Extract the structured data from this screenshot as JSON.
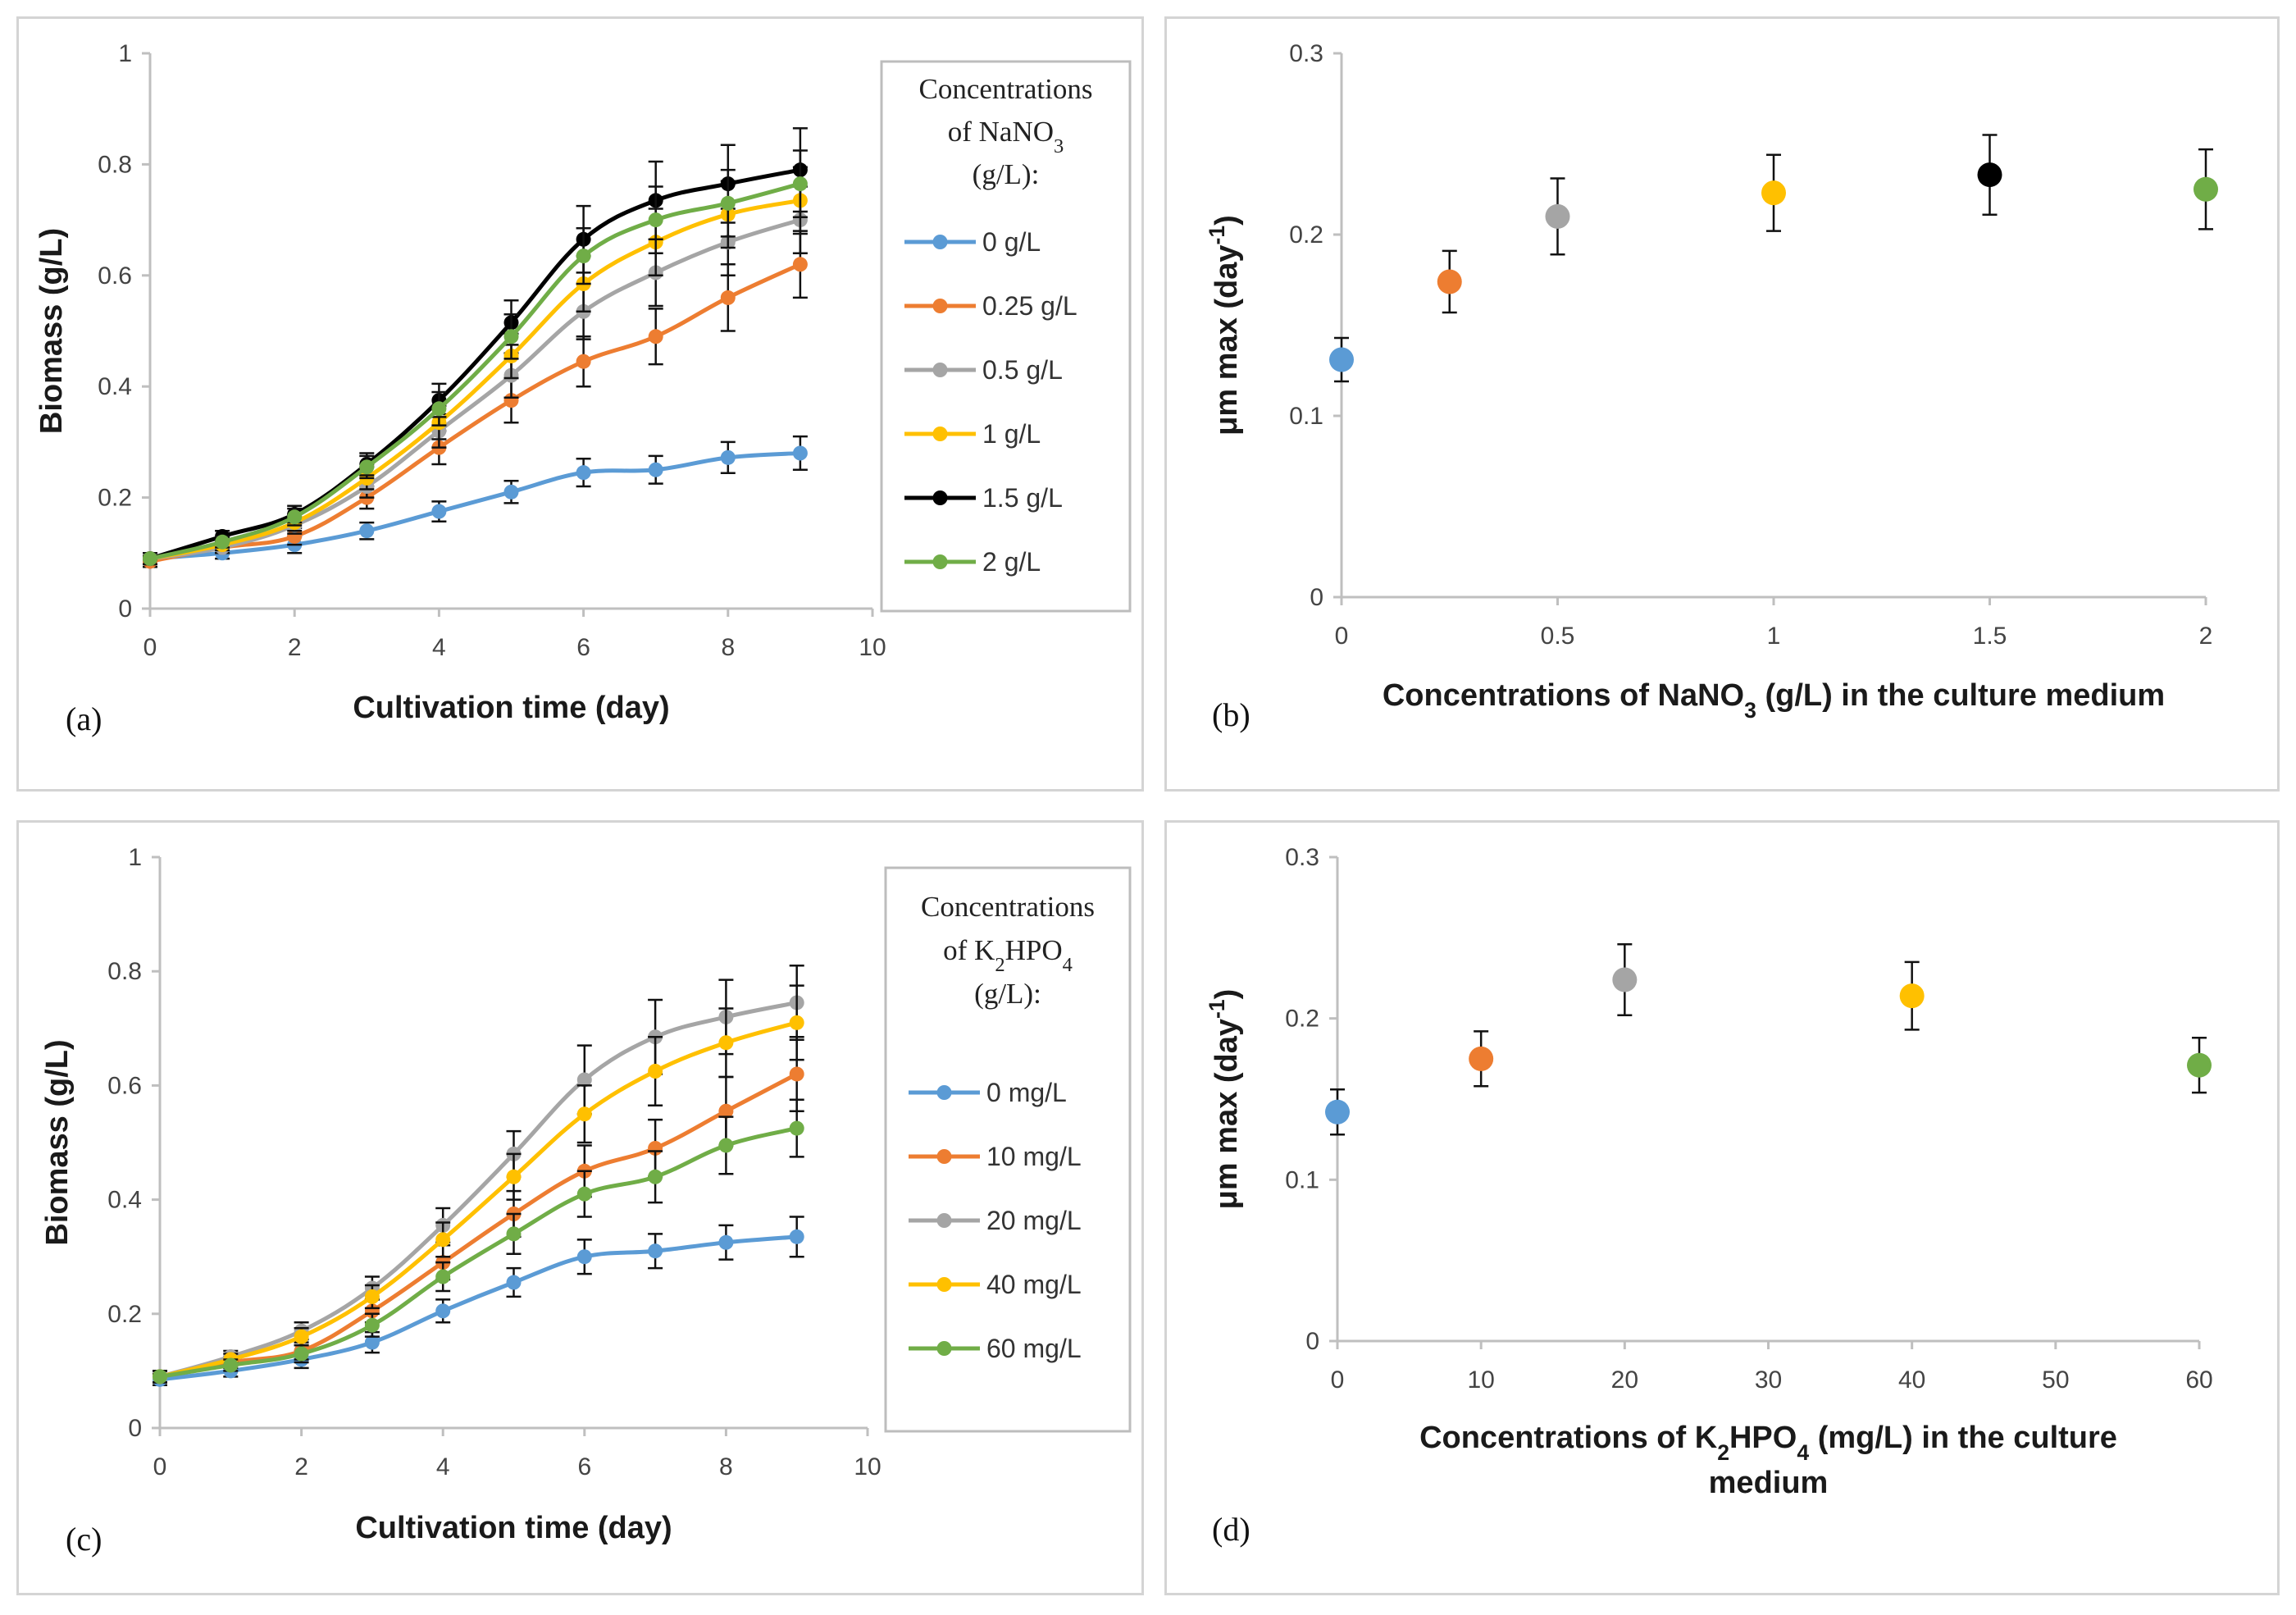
{
  "colors": {
    "blue": "#5B9BD5",
    "orange": "#ED7D31",
    "gray": "#A5A5A5",
    "yellow": "#FFC000",
    "black": "#000000",
    "green": "#70AD47"
  },
  "chart_data": [
    {
      "panel_label": "(a)",
      "type": "line",
      "xlabel": "Cultivation time (day)",
      "ylabel": "Biomass (g/L)",
      "xlim": [
        0,
        10
      ],
      "ylim": [
        0,
        1
      ],
      "x_ticks": [
        "0",
        "2",
        "4",
        "6",
        "8",
        "10"
      ],
      "y_ticks": [
        "0",
        "0.2",
        "0.4",
        "0.6",
        "0.8",
        "1"
      ],
      "legend_title": [
        "Concentrations",
        "of NaNO3",
        "(g/L):"
      ],
      "x": [
        0,
        1,
        2,
        3,
        4,
        5,
        6,
        7,
        8,
        9
      ],
      "series": [
        {
          "name": "0 g/L",
          "color": "#5B9BD5",
          "values": [
            0.09,
            0.1,
            0.115,
            0.14,
            0.175,
            0.21,
            0.245,
            0.25,
            0.272,
            0.28
          ],
          "errors": [
            0.01,
            0.01,
            0.015,
            0.015,
            0.018,
            0.02,
            0.025,
            0.025,
            0.028,
            0.03
          ]
        },
        {
          "name": "0.25 g/L",
          "color": "#ED7D31",
          "values": [
            0.085,
            0.11,
            0.13,
            0.2,
            0.29,
            0.375,
            0.445,
            0.49,
            0.56,
            0.62
          ],
          "errors": [
            0.01,
            0.01,
            0.015,
            0.02,
            0.03,
            0.04,
            0.045,
            0.05,
            0.06,
            0.06
          ]
        },
        {
          "name": "0.5 g/L",
          "color": "#A5A5A5",
          "values": [
            0.09,
            0.11,
            0.15,
            0.22,
            0.32,
            0.42,
            0.535,
            0.605,
            0.66,
            0.7
          ],
          "errors": [
            0.01,
            0.01,
            0.015,
            0.02,
            0.03,
            0.04,
            0.05,
            0.06,
            0.06,
            0.06
          ]
        },
        {
          "name": "1 g/L",
          "color": "#FFC000",
          "values": [
            0.09,
            0.115,
            0.155,
            0.235,
            0.335,
            0.455,
            0.585,
            0.66,
            0.71,
            0.735
          ],
          "errors": [
            0.01,
            0.01,
            0.015,
            0.02,
            0.03,
            0.04,
            0.05,
            0.06,
            0.06,
            0.06
          ]
        },
        {
          "name": "1.5 g/L",
          "color": "#000000",
          "values": [
            0.09,
            0.13,
            0.17,
            0.26,
            0.375,
            0.515,
            0.665,
            0.735,
            0.765,
            0.79
          ],
          "errors": [
            0.01,
            0.01,
            0.015,
            0.02,
            0.03,
            0.04,
            0.06,
            0.07,
            0.07,
            0.075
          ]
        },
        {
          "name": "2 g/L",
          "color": "#70AD47",
          "values": [
            0.09,
            0.12,
            0.165,
            0.255,
            0.36,
            0.49,
            0.635,
            0.7,
            0.73,
            0.765
          ],
          "errors": [
            0.01,
            0.01,
            0.015,
            0.02,
            0.03,
            0.04,
            0.05,
            0.06,
            0.06,
            0.06
          ]
        }
      ]
    },
    {
      "panel_label": "(b)",
      "type": "scatter",
      "xlabel": "Concentrations of NaNO3 (g/L) in the culture medium",
      "ylabel": "μm max (day-1)",
      "xlim": [
        0,
        2
      ],
      "ylim": [
        0,
        0.3
      ],
      "x_ticks": [
        "0",
        "0.5",
        "1",
        "1.5",
        "2"
      ],
      "y_ticks": [
        "0",
        "0.1",
        "0.2",
        "0.3"
      ],
      "points": [
        {
          "x": 0,
          "y": 0.131,
          "err": 0.012,
          "color": "#5B9BD5"
        },
        {
          "x": 0.25,
          "y": 0.174,
          "err": 0.017,
          "color": "#ED7D31"
        },
        {
          "x": 0.5,
          "y": 0.21,
          "err": 0.021,
          "color": "#A5A5A5"
        },
        {
          "x": 1,
          "y": 0.223,
          "err": 0.021,
          "color": "#FFC000"
        },
        {
          "x": 1.5,
          "y": 0.233,
          "err": 0.022,
          "color": "#000000"
        },
        {
          "x": 2,
          "y": 0.225,
          "err": 0.022,
          "color": "#70AD47"
        }
      ]
    },
    {
      "panel_label": "(c)",
      "type": "line",
      "xlabel": "Cultivation time (day)",
      "ylabel": "Biomass (g/L)",
      "xlim": [
        0,
        10
      ],
      "ylim": [
        0,
        1
      ],
      "x_ticks": [
        "0",
        "2",
        "4",
        "6",
        "8",
        "10"
      ],
      "y_ticks": [
        "0",
        "0.2",
        "0.4",
        "0.6",
        "0.8",
        "1"
      ],
      "legend_title": [
        "Concentrations",
        "of K2HPO4",
        "(g/L):"
      ],
      "x": [
        0,
        1,
        2,
        3,
        4,
        5,
        6,
        7,
        8,
        9
      ],
      "series": [
        {
          "name": "0 mg/L",
          "color": "#5B9BD5",
          "values": [
            0.085,
            0.1,
            0.12,
            0.15,
            0.205,
            0.255,
            0.3,
            0.31,
            0.325,
            0.335
          ],
          "errors": [
            0.01,
            0.01,
            0.015,
            0.018,
            0.02,
            0.025,
            0.03,
            0.03,
            0.03,
            0.035
          ]
        },
        {
          "name": " 10 mg/L",
          "color": "#ED7D31",
          "values": [
            0.09,
            0.115,
            0.135,
            0.205,
            0.29,
            0.375,
            0.45,
            0.49,
            0.555,
            0.62
          ],
          "errors": [
            0.01,
            0.01,
            0.015,
            0.02,
            0.03,
            0.04,
            0.045,
            0.05,
            0.06,
            0.065
          ]
        },
        {
          "name": "20 mg/L",
          "color": "#A5A5A5",
          "values": [
            0.09,
            0.125,
            0.17,
            0.245,
            0.355,
            0.48,
            0.61,
            0.685,
            0.72,
            0.745
          ],
          "errors": [
            0.01,
            0.01,
            0.015,
            0.02,
            0.03,
            0.04,
            0.06,
            0.065,
            0.065,
            0.065
          ]
        },
        {
          "name": "40 mg/L",
          "color": "#FFC000",
          "values": [
            0.09,
            0.12,
            0.16,
            0.23,
            0.33,
            0.44,
            0.55,
            0.625,
            0.675,
            0.71
          ],
          "errors": [
            0.01,
            0.01,
            0.015,
            0.02,
            0.03,
            0.04,
            0.05,
            0.06,
            0.06,
            0.065
          ]
        },
        {
          "name": "60 mg/L",
          "color": "#70AD47",
          "values": [
            0.09,
            0.11,
            0.13,
            0.18,
            0.265,
            0.34,
            0.41,
            0.44,
            0.495,
            0.525
          ],
          "errors": [
            0.01,
            0.01,
            0.015,
            0.02,
            0.025,
            0.035,
            0.04,
            0.045,
            0.05,
            0.05
          ]
        }
      ]
    },
    {
      "panel_label": "(d)",
      "type": "scatter",
      "xlabel_lines": [
        "Concentrations of K2HPO4 (mg/L) in the culture",
        "medium"
      ],
      "ylabel": "μm max (day-1)",
      "xlim": [
        0,
        60
      ],
      "ylim": [
        0,
        0.3
      ],
      "x_ticks": [
        "0",
        "10",
        "20",
        "30",
        "40",
        "50",
        "60"
      ],
      "y_ticks": [
        "0",
        "0.1",
        "0.2",
        "0.3"
      ],
      "points": [
        {
          "x": 0,
          "y": 0.142,
          "err": 0.014,
          "color": "#5B9BD5"
        },
        {
          "x": 10,
          "y": 0.175,
          "err": 0.017,
          "color": "#ED7D31"
        },
        {
          "x": 20,
          "y": 0.224,
          "err": 0.022,
          "color": "#A5A5A5"
        },
        {
          "x": 40,
          "y": 0.214,
          "err": 0.021,
          "color": "#FFC000"
        },
        {
          "x": 60,
          "y": 0.171,
          "err": 0.017,
          "color": "#70AD47"
        }
      ]
    }
  ]
}
